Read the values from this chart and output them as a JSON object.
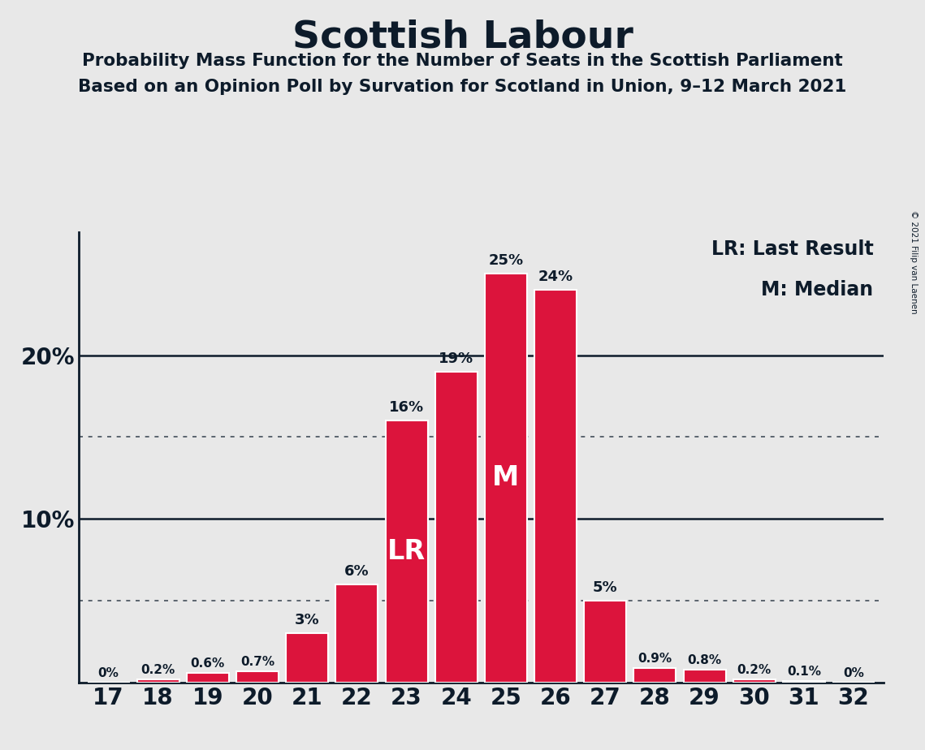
{
  "title": "Scottish Labour",
  "subtitle1": "Probability Mass Function for the Number of Seats in the Scottish Parliament",
  "subtitle2": "Based on an Opinion Poll by Survation for Scotland in Union, 9–12 March 2021",
  "copyright": "© 2021 Filip van Laenen",
  "legend_lr": "LR: Last Result",
  "legend_m": "M: Median",
  "categories": [
    17,
    18,
    19,
    20,
    21,
    22,
    23,
    24,
    25,
    26,
    27,
    28,
    29,
    30,
    31,
    32
  ],
  "values": [
    0.0,
    0.2,
    0.6,
    0.7,
    3.0,
    6.0,
    16.0,
    19.0,
    25.0,
    24.0,
    5.0,
    0.9,
    0.8,
    0.2,
    0.1,
    0.0
  ],
  "labels": [
    "0%",
    "0.2%",
    "0.6%",
    "0.7%",
    "3%",
    "6%",
    "16%",
    "19%",
    "25%",
    "24%",
    "5%",
    "0.9%",
    "0.8%",
    "0.2%",
    "0.1%",
    "0%"
  ],
  "bar_color": "#DC143C",
  "bar_edge_color": "#ffffff",
  "background_color": "#e8e8e8",
  "text_color": "#0d1b2a",
  "lr_seat": 23,
  "median_seat": 25,
  "dotted_lines": [
    5.0,
    15.0
  ],
  "solid_lines": [
    10.0,
    20.0
  ],
  "ylim_max": 27.5
}
